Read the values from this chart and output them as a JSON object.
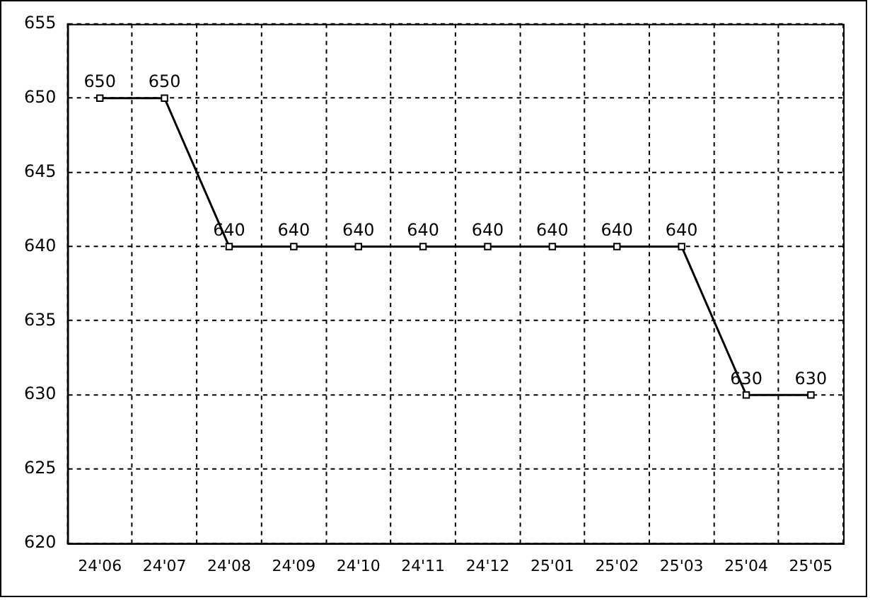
{
  "chart_data": {
    "type": "line",
    "categories": [
      "24'06",
      "24'07",
      "24'08",
      "24'09",
      "24'10",
      "24'11",
      "24'12",
      "25'01",
      "25'02",
      "25'03",
      "25'04",
      "25'05"
    ],
    "values": [
      650,
      650,
      640,
      640,
      640,
      640,
      640,
      640,
      640,
      640,
      630,
      630
    ],
    "color": "#000000",
    "ylim": [
      620,
      655
    ],
    "yticks": [
      620,
      625,
      630,
      635,
      640,
      645,
      650,
      655
    ],
    "grid": true,
    "marker": "square",
    "line_style": "solid",
    "data_labels": true
  }
}
